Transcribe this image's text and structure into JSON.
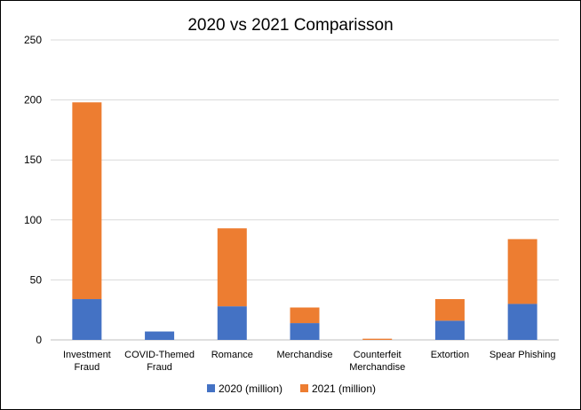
{
  "chart_data": {
    "type": "bar",
    "stacked": true,
    "title": "2020 vs 2021 Comparisson",
    "categories": [
      [
        "Investment",
        "Fraud"
      ],
      [
        "COVID-Themed",
        "Fraud"
      ],
      [
        "Romance"
      ],
      [
        "Merchandise"
      ],
      [
        "Counterfeit",
        "Merchandise"
      ],
      [
        "Extortion"
      ],
      [
        "Spear Phishing"
      ]
    ],
    "series": [
      {
        "name": "2020 (million)",
        "color": "#4472c4",
        "values": [
          34,
          7,
          28,
          14,
          0,
          16,
          30
        ]
      },
      {
        "name": "2021 (million)",
        "color": "#ed7d31",
        "values": [
          164,
          0,
          65,
          13,
          1,
          18,
          54
        ]
      }
    ],
    "ylim": [
      0,
      250
    ],
    "yticks": [
      0,
      50,
      100,
      150,
      200,
      250
    ],
    "grid": true,
    "legend": "bottom"
  }
}
